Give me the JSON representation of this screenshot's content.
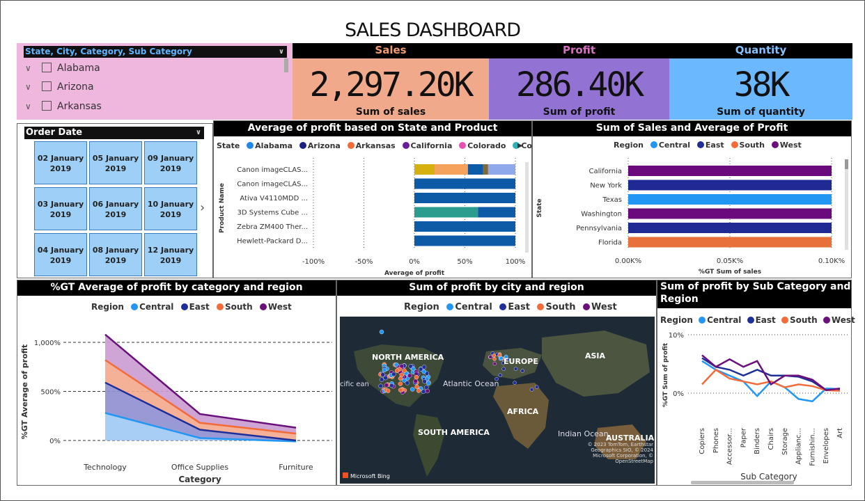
{
  "title": "SALES DASHBOARD",
  "slicer": {
    "header": "State, City, Category, Sub Category",
    "items": [
      "Alabama",
      "Arizona",
      "Arkansas"
    ]
  },
  "kpis": [
    {
      "header": "Sales",
      "value": "2,297.20K",
      "label": "Sum of sales",
      "header_color": "#f39a72",
      "bg": "#f0a98a"
    },
    {
      "header": "Profit",
      "value": "286.40K",
      "label": "Sum of profit",
      "header_color": "#d96fc4",
      "bg": "#9273d3"
    },
    {
      "header": "Quantity",
      "value": "38K",
      "label": "Sum of quantity",
      "header_color": "#82c2ff",
      "bg": "#6bb8ff"
    }
  ],
  "order_date": {
    "header": "Order Date",
    "tiles": [
      [
        "02 January",
        "2019"
      ],
      [
        "05 January",
        "2019"
      ],
      [
        "09 January",
        "2019"
      ],
      [
        "03 January",
        "2019"
      ],
      [
        "06 January",
        "2019"
      ],
      [
        "10 January",
        "2019"
      ],
      [
        "04 January",
        "2019"
      ],
      [
        "08 January",
        "2019"
      ],
      [
        "12 January",
        "2019"
      ]
    ]
  },
  "colors": {
    "central": "#2196f3",
    "east": "#1f2f99",
    "south": "#f26b38",
    "west": "#6b0f7d",
    "alabama": "#1e88e5",
    "arizona": "#1a237e",
    "arkansas": "#f26b38",
    "california": "#6a1b9a",
    "colorado": "#e94fb0",
    "connecticut": "#2bb3b1"
  },
  "chart_data": [
    {
      "type": "bar",
      "title": "Average of profit based on State and Product",
      "legend_title": "State",
      "legend": [
        "Alabama",
        "Arizona",
        "Arkansas",
        "California",
        "Colorado",
        "Connect..."
      ],
      "ylabel": "Product Name",
      "xlabel": "Average of profit",
      "x_ticks": [
        "-100%",
        "-50%",
        "0%",
        "50%",
        "100%"
      ],
      "xlim": [
        -100,
        100
      ],
      "categories": [
        "Canon imageCLAS...",
        "Canon imageCLAS...",
        "Ativa V4110MDD ...",
        "3D Systems Cube ...",
        "Zebra ZM400 Ther...",
        "Hewlett-Packard D..."
      ],
      "stacked_segments": [
        [
          {
            "value": 20,
            "color": "#d4b10f"
          },
          {
            "value": 33,
            "color": "#f6a15c"
          },
          {
            "value": 15,
            "color": "#0d5aa7"
          },
          {
            "value": 5,
            "color": "#7b6a3b"
          },
          {
            "value": 27,
            "color": "#8fa8ec"
          }
        ],
        [
          {
            "value": 100,
            "color": "#0d5aa7"
          }
        ],
        [
          {
            "value": 100,
            "color": "#0d5aa7"
          }
        ],
        [
          {
            "value": 63,
            "color": "#2a9d8f"
          },
          {
            "value": 37,
            "color": "#0d5aa7"
          }
        ],
        [
          {
            "value": 100,
            "color": "#0d5aa7"
          }
        ],
        [
          {
            "value": 100,
            "color": "#0d5aa7"
          }
        ]
      ]
    },
    {
      "type": "bar",
      "title": "Sum of Sales and Average of Profit",
      "legend_title": "Region",
      "legend": [
        "Central",
        "East",
        "South",
        "West"
      ],
      "ylabel": "State",
      "xlabel": "%GT Sum of sales",
      "x_ticks": [
        "0.00K%",
        "0.05K%",
        "0.10K%"
      ],
      "categories": [
        "California",
        "New York",
        "Texas",
        "Washington",
        "Pennsylvania",
        "Florida"
      ],
      "values": [
        100,
        100,
        100,
        100,
        100,
        100
      ],
      "bar_colors": [
        "#6a0a7c",
        "#1f2a94",
        "#2196f3",
        "#6a0a7c",
        "#1f2a94",
        "#e8703a"
      ]
    },
    {
      "type": "area",
      "title": "%GT Average of profit by category and region",
      "legend_title": "Region",
      "legend": [
        "Central",
        "East",
        "South",
        "West"
      ],
      "xlabel": "Category",
      "ylabel": "%GT Average of profit",
      "categories": [
        "Technology",
        "Office Supplies",
        "Furniture"
      ],
      "y_ticks": [
        "0%",
        "500%",
        "1,000%"
      ],
      "ylim": [
        0,
        1000
      ],
      "series": [
        {
          "name": "Central",
          "values": [
            280,
            25,
            -10
          ]
        },
        {
          "name": "East",
          "values": [
            590,
            110,
            0
          ]
        },
        {
          "name": "South",
          "values": [
            820,
            180,
            70
          ]
        },
        {
          "name": "West",
          "values": [
            1080,
            270,
            130
          ]
        }
      ]
    },
    {
      "type": "line",
      "title": "Sum of profit by Sub Category and Region",
      "legend_title": "Region",
      "legend": [
        "Central",
        "East",
        "South",
        "West"
      ],
      "xlabel": "Sub Category",
      "ylabel": "%GT Sum of profit",
      "y_ticks": [
        "0%",
        "10%"
      ],
      "ylim": [
        -2,
        10
      ],
      "categories": [
        "Copiers",
        "Phones",
        "Accessor...",
        "Paper",
        "Binders",
        "Chairs",
        "Storage",
        "Applianc...",
        "Furnishin...",
        "Envelopes",
        "Art"
      ],
      "series": [
        {
          "name": "Central",
          "values": [
            5.5,
            4.0,
            3.0,
            2.0,
            -0.5,
            2.0,
            1.0,
            -1.0,
            -1.4,
            0.8,
            0.7
          ]
        },
        {
          "name": "East",
          "values": [
            6.0,
            4.5,
            4.0,
            3.0,
            4.0,
            3.0,
            3.0,
            2.8,
            2.0,
            0.5,
            0.7
          ]
        },
        {
          "name": "South",
          "values": [
            1.5,
            4.0,
            2.5,
            2.0,
            1.5,
            2.0,
            1.0,
            1.5,
            1.2,
            0.5,
            0.4
          ]
        },
        {
          "name": "West",
          "values": [
            6.5,
            4.5,
            5.8,
            4.5,
            5.5,
            1.5,
            3.0,
            3.0,
            2.3,
            0.5,
            0.8
          ]
        }
      ]
    }
  ],
  "map": {
    "title": "Sum of profit by city and region",
    "legend_title": "Region",
    "legend": [
      "Central",
      "East",
      "South",
      "West"
    ],
    "labels": [
      "NORTH AMERICA",
      "EUROPE",
      "ASIA",
      "Atlantic Ocean",
      "AFRICA",
      "SOUTH AMERICA",
      "Indian Ocean",
      "AUSTRALIA",
      "cific ean"
    ],
    "attribution": "© 2023 TomTom, Earthstar Geographics SIO, © 2024 Microsoft Corporation, © OpenStreetMap",
    "brand": "Microsoft Bing"
  }
}
